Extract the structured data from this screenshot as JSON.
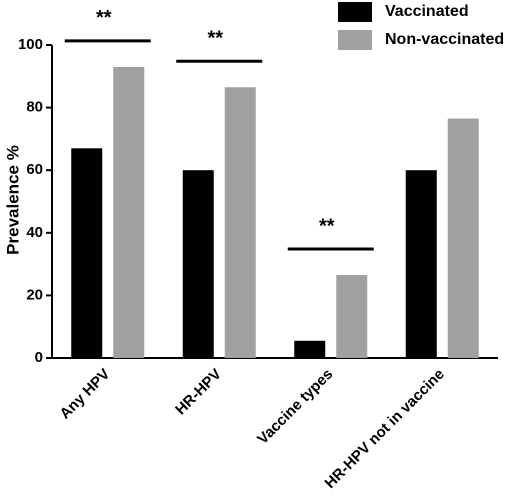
{
  "chart_data": {
    "type": "bar",
    "y_label": "Prevalence %",
    "categories": [
      "Any HPV",
      "HR-HPV",
      "Vaccine types",
      "HR-HPV not in vaccine"
    ],
    "series": [
      {
        "name": "Vaccinated",
        "color": "#000000",
        "values": [
          67,
          60,
          5.5,
          60
        ]
      },
      {
        "name": "Non-vaccinated",
        "color": "#a0a0a2",
        "values": [
          93,
          86.5,
          26.5,
          76.5
        ]
      }
    ],
    "ylim": [
      0,
      100
    ],
    "yticks": [
      0,
      20,
      40,
      60,
      80,
      100
    ],
    "legend": "top-right",
    "annotations": [
      {
        "text": "**",
        "category": 0
      },
      {
        "text": "**",
        "category": 1
      },
      {
        "text": "**",
        "category": 2
      }
    ]
  }
}
